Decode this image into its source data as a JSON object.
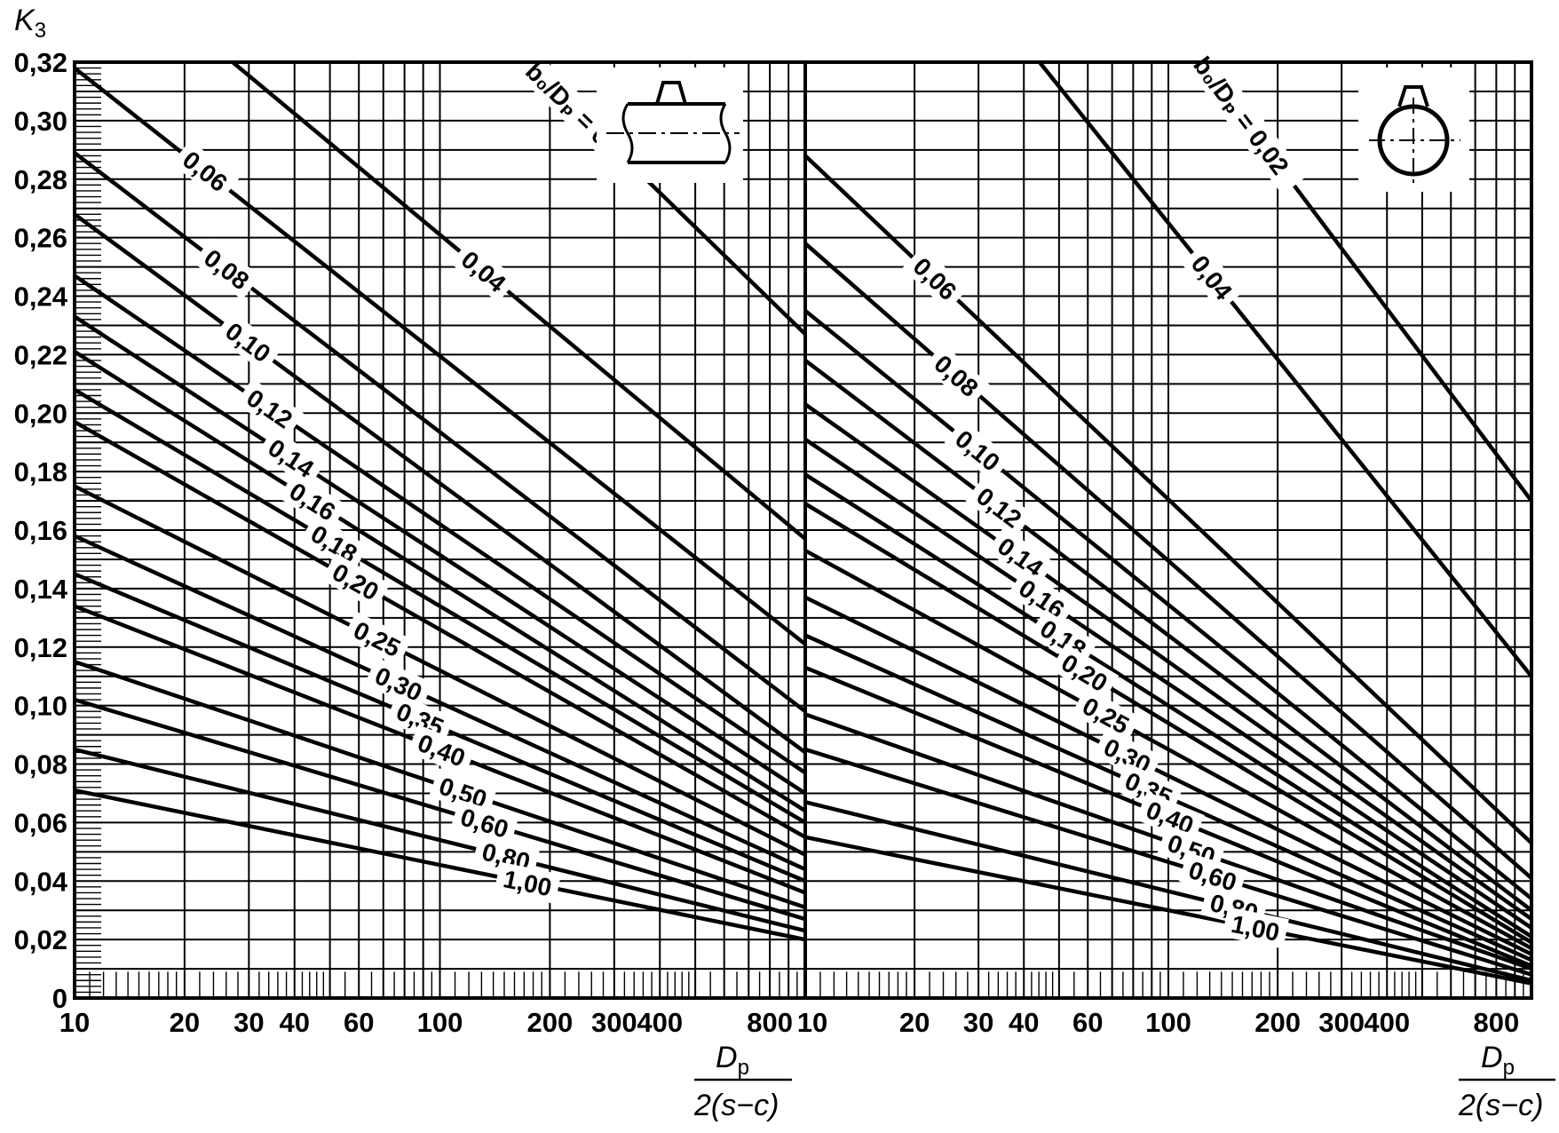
{
  "y_axis_label": {
    "symbol": "K",
    "subscript": "3"
  },
  "x_axis_label": {
    "numerator_symbol": "D",
    "numerator_subscript": "p",
    "denominator": "2(s−c)"
  },
  "colors": {
    "curve": "#000000",
    "grid": "#000000",
    "background": "#ffffff"
  },
  "chart_data": [
    {
      "type": "line",
      "xscale": "log",
      "xlim": [
        10,
        1000
      ],
      "ylim": [
        0,
        0.32
      ],
      "grid": true,
      "icon": "pipe-side-view-with-branch-icon",
      "x_tick_labels": [
        "10",
        "20",
        "30",
        "40",
        "60",
        "100",
        "200",
        "300",
        "400",
        "800"
      ],
      "y_tick_labels": [
        "0",
        "0,02",
        "0,04",
        "0,06",
        "0,08",
        "0,10",
        "0,12",
        "0,14",
        "0,16",
        "0,18",
        "0,20",
        "0,22",
        "0,24",
        "0,26",
        "0,28",
        "0,30",
        "0,32"
      ],
      "series": [
        {
          "name": "b0/Dp = 0,02",
          "label": "b₀/Dₚ = 0,02",
          "x": [
            10,
            1000
          ],
          "y": [
            0.47,
            0.227
          ]
        },
        {
          "name": "0,04",
          "label": "0,04",
          "x": [
            10,
            1000
          ],
          "y": [
            0.365,
            0.157
          ]
        },
        {
          "name": "0,06",
          "label": "0,06",
          "x": [
            10,
            1000
          ],
          "y": [
            0.318,
            0.121
          ]
        },
        {
          "name": "0,08",
          "label": "0,08",
          "x": [
            10,
            1000
          ],
          "y": [
            0.289,
            0.098
          ]
        },
        {
          "name": "0,10",
          "label": "0,10",
          "x": [
            10,
            1000
          ],
          "y": [
            0.268,
            0.084
          ]
        },
        {
          "name": "0,12",
          "label": "0,12",
          "x": [
            10,
            1000
          ],
          "y": [
            0.247,
            0.077
          ]
        },
        {
          "name": "0,14",
          "label": "0,14",
          "x": [
            10,
            1000
          ],
          "y": [
            0.233,
            0.07
          ]
        },
        {
          "name": "0,16",
          "label": "0,16",
          "x": [
            10,
            1000
          ],
          "y": [
            0.221,
            0.064
          ]
        },
        {
          "name": "0,18",
          "label": "0,18",
          "x": [
            10,
            1000
          ],
          "y": [
            0.208,
            0.06
          ]
        },
        {
          "name": "0,20",
          "label": "0,20",
          "x": [
            10,
            1000
          ],
          "y": [
            0.197,
            0.055
          ]
        },
        {
          "name": "0,25",
          "label": "0,25",
          "x": [
            10,
            1000
          ],
          "y": [
            0.175,
            0.049
          ]
        },
        {
          "name": "0,30",
          "label": "0,30",
          "x": [
            10,
            1000
          ],
          "y": [
            0.158,
            0.044
          ]
        },
        {
          "name": "0,35",
          "label": "0,35",
          "x": [
            10,
            1000
          ],
          "y": [
            0.145,
            0.04
          ]
        },
        {
          "name": "0,40",
          "label": "0,40",
          "x": [
            10,
            1000
          ],
          "y": [
            0.134,
            0.036
          ]
        },
        {
          "name": "0,50",
          "label": "0,50",
          "x": [
            10,
            1000
          ],
          "y": [
            0.115,
            0.031
          ]
        },
        {
          "name": "0,60",
          "label": "0,60",
          "x": [
            10,
            1000
          ],
          "y": [
            0.102,
            0.027
          ]
        },
        {
          "name": "0,80",
          "label": "0,80",
          "x": [
            10,
            1000
          ],
          "y": [
            0.085,
            0.023
          ]
        },
        {
          "name": "1,00",
          "label": "1,00",
          "x": [
            10,
            1000
          ],
          "y": [
            0.071,
            0.02
          ]
        }
      ]
    },
    {
      "type": "line",
      "xscale": "log",
      "xlim": [
        10,
        1000
      ],
      "ylim": [
        0,
        0.32
      ],
      "grid": true,
      "icon": "pipe-cross-section-with-branch-icon",
      "x_tick_labels": [
        "10",
        "20",
        "30",
        "40",
        "60",
        "100",
        "200",
        "300",
        "400",
        "800"
      ],
      "series": [
        {
          "name": "b0/Dp = 0,02",
          "label": "b₀/Dₚ = 0,02",
          "x": [
            10,
            1000
          ],
          "y": [
            0.5,
            0.17
          ]
        },
        {
          "name": "0,04",
          "label": "0,04",
          "x": [
            10,
            1000
          ],
          "y": [
            0.42,
            0.11
          ]
        },
        {
          "name": "0,06",
          "label": "0,06",
          "x": [
            10,
            1000
          ],
          "y": [
            0.288,
            0.053
          ]
        },
        {
          "name": "0,08",
          "label": "0,08",
          "x": [
            10,
            1000
          ],
          "y": [
            0.258,
            0.041
          ]
        },
        {
          "name": "0,10",
          "label": "0,10",
          "x": [
            10,
            1000
          ],
          "y": [
            0.235,
            0.034
          ]
        },
        {
          "name": "0,12",
          "label": "0,12",
          "x": [
            10,
            1000
          ],
          "y": [
            0.218,
            0.03
          ]
        },
        {
          "name": "0,14",
          "label": "0,14",
          "x": [
            10,
            1000
          ],
          "y": [
            0.203,
            0.027
          ]
        },
        {
          "name": "0,16",
          "label": "0,16",
          "x": [
            10,
            1000
          ],
          "y": [
            0.191,
            0.024
          ]
        },
        {
          "name": "0,18",
          "label": "0,18",
          "x": [
            10,
            1000
          ],
          "y": [
            0.179,
            0.021
          ]
        },
        {
          "name": "0,20",
          "label": "0,20",
          "x": [
            10,
            1000
          ],
          "y": [
            0.169,
            0.019
          ]
        },
        {
          "name": "0,25",
          "label": "0,25",
          "x": [
            10,
            1000
          ],
          "y": [
            0.153,
            0.017
          ]
        },
        {
          "name": "0,30",
          "label": "0,30",
          "x": [
            10,
            1000
          ],
          "y": [
            0.137,
            0.015
          ]
        },
        {
          "name": "0,35",
          "label": "0,35",
          "x": [
            10,
            1000
          ],
          "y": [
            0.124,
            0.013
          ]
        },
        {
          "name": "0,40",
          "label": "0,40",
          "x": [
            10,
            1000
          ],
          "y": [
            0.113,
            0.011
          ]
        },
        {
          "name": "0,50",
          "label": "0,50",
          "x": [
            10,
            1000
          ],
          "y": [
            0.097,
            0.01
          ]
        },
        {
          "name": "0,60",
          "label": "0,60",
          "x": [
            10,
            1000
          ],
          "y": [
            0.085,
            0.008
          ]
        },
        {
          "name": "0,80",
          "label": "0,80",
          "x": [
            10,
            1000
          ],
          "y": [
            0.067,
            0.006
          ]
        },
        {
          "name": "1,00",
          "label": "1,00",
          "x": [
            10,
            1000
          ],
          "y": [
            0.055,
            0.005
          ]
        }
      ]
    }
  ]
}
